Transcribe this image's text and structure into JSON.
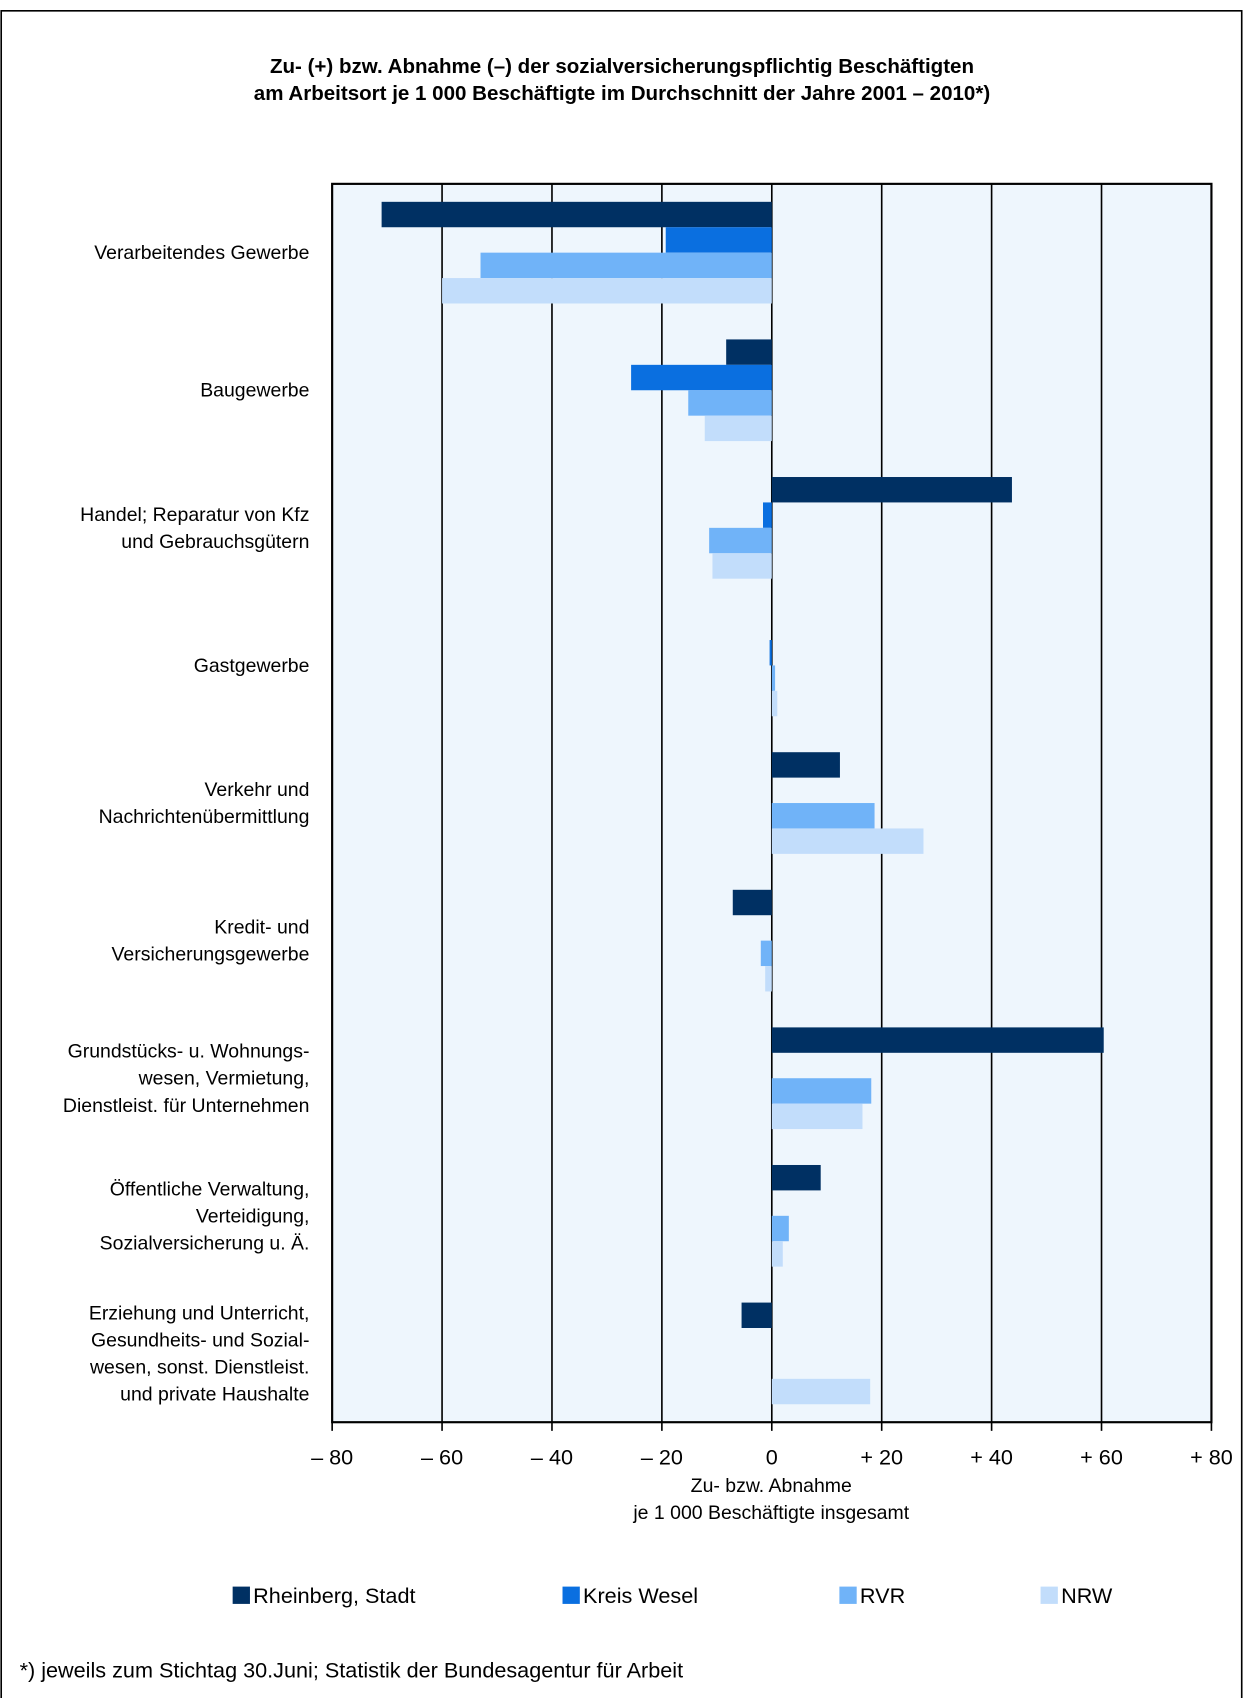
{
  "chart_data": {
    "type": "hbar",
    "title": "Zu- (+) bzw. Abnahme (–) der sozialversicherungspflichtig Beschäftigten\nam Arbeitsort  je 1 000 Beschäftigte im Durchschnitt der Jahre 2001 – 2010*)",
    "x_label": "Zu- bzw. Abnahme\nje 1 000 Beschäftigte insgesamt",
    "footnote": "*) jeweils zum Stichtag 30.Juni; Statistik der Bundesagentur für Arbeit",
    "categories": [
      "Verarbeitendes Gewerbe",
      "Baugewerbe",
      "Handel; Reparatur von Kfz\nund Gebrauchsgütern",
      "Gastgewerbe",
      "Verkehr und\nNachrichtenübermittlung",
      "Kredit- und\nVersicherungsgewerbe",
      "Grundstücks- u. Wohnungs-\nwesen, Vermietung,\nDienstleist. für Unternehmen",
      "Öffentliche Verwaltung,\nVerteidigung,\nSozialversicherung u. Ä.",
      "Erziehung und Unterricht,\nGesundheits- und Sozial-\nwesen, sonst. Dienstleist.\nund private Haushalte"
    ],
    "series": [
      {
        "name": "Rheinberg, Stadt",
        "color": "#003063",
        "values": [
          -71,
          -8.3,
          43.7,
          null,
          12.4,
          -7.1,
          60.4,
          8.9,
          -5.5
        ]
      },
      {
        "name": "Kreis Wesel",
        "color": "#0a6fe0",
        "values": [
          -19.3,
          -25.6,
          -1.6,
          -0.4,
          null,
          null,
          null,
          null,
          null
        ]
      },
      {
        "name": "RVR",
        "color": "#70b3f8",
        "values": [
          -53,
          -15.2,
          -11.4,
          0.6,
          18.7,
          -2.0,
          18.1,
          3.1,
          null
        ]
      },
      {
        "name": "NRW",
        "color": "#c2ddfb",
        "values": [
          -60,
          -12.2,
          -10.8,
          1.0,
          27.6,
          -1.2,
          16.5,
          2.0,
          17.9
        ]
      }
    ],
    "xlim": [
      -80,
      80
    ],
    "xticks": [
      {
        "value": -80,
        "label": "– 80"
      },
      {
        "value": -60,
        "label": "– 60"
      },
      {
        "value": -40,
        "label": "– 40"
      },
      {
        "value": -20,
        "label": "– 20"
      },
      0,
      {
        "value": 20,
        "label": "+ 20"
      },
      {
        "value": 40,
        "label": "+ 40"
      },
      {
        "value": 60,
        "label": "+ 60"
      },
      {
        "value": 80,
        "label": "+ 80"
      }
    ],
    "grid": true
  }
}
